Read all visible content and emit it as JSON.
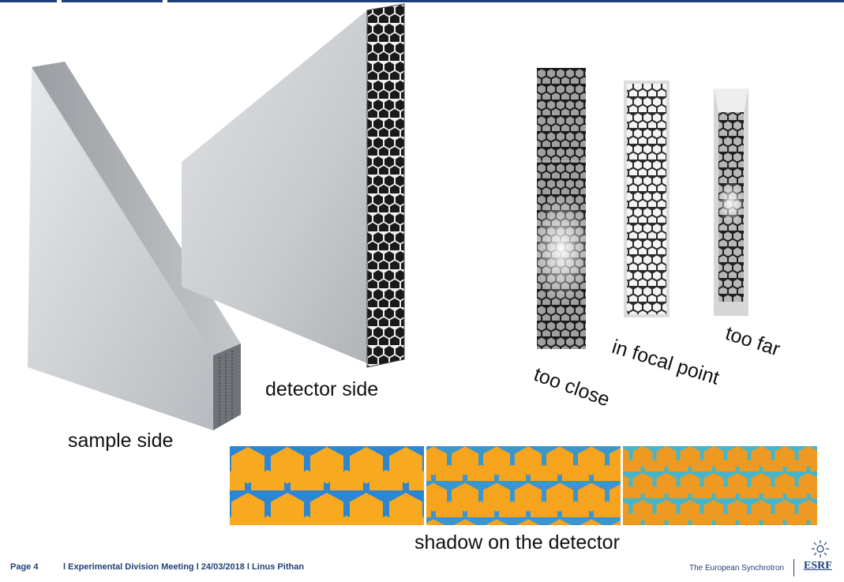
{
  "labels": {
    "detector_side": "detector side",
    "sample_side": "sample side",
    "too_close": "too close",
    "in_focal_point": "in focal point",
    "too_far": "too far",
    "shadow": "shadow on the detector"
  },
  "footer": {
    "page": "Page 4",
    "meta": "l Experimental Division Meeting l 24/03/2018 l Linus Pithan",
    "tagline": "The European Synchrotron",
    "logo_text": "ESRF"
  },
  "colors": {
    "brand_blue": "#1f3f7a",
    "shadow_orange": "#f5a81c",
    "shadow_edge": "#2a7fd0"
  }
}
